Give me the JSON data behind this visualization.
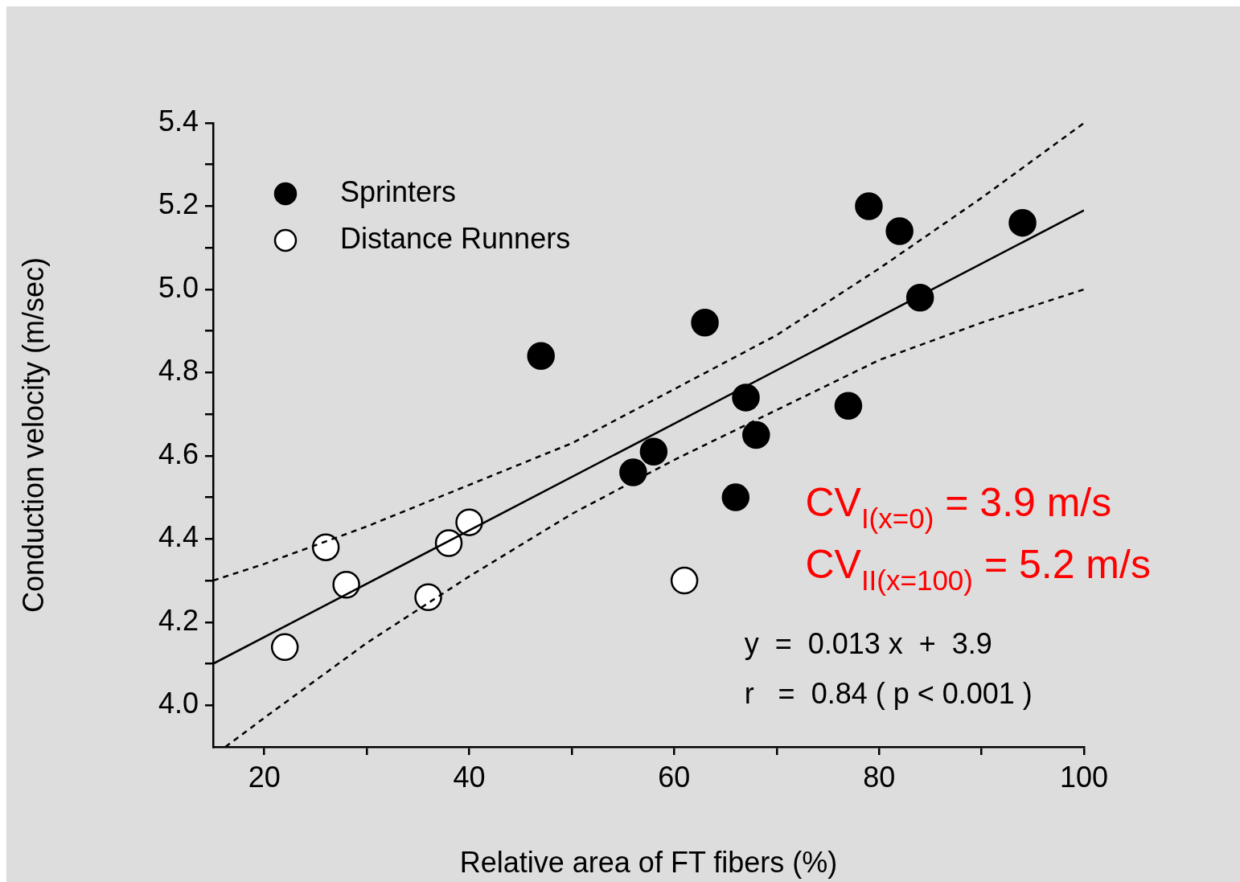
{
  "chart_data": {
    "type": "scatter",
    "xlabel": "Relative area of FT fibers (%)",
    "ylabel": "Conduction velocity (m/sec)",
    "xlim": [
      15,
      100
    ],
    "ylim": [
      3.9,
      5.4
    ],
    "xticks": [
      20,
      {
        "value": 30,
        "label": null
      },
      40,
      {
        "value": 50,
        "label": null
      },
      60,
      {
        "value": 70,
        "label": null
      },
      80,
      {
        "value": 90,
        "label": null
      },
      100
    ],
    "yticks": [
      {
        "value": 4.0,
        "label": "4.0"
      },
      {
        "value": 4.1,
        "label": null
      },
      4.2,
      {
        "value": 4.3,
        "label": null
      },
      4.4,
      {
        "value": 4.5,
        "label": null
      },
      4.6,
      {
        "value": 4.7,
        "label": null
      },
      4.8,
      {
        "value": 4.9,
        "label": null
      },
      {
        "value": 5.0,
        "label": "5.0"
      },
      {
        "value": 5.1,
        "label": null
      },
      5.2,
      {
        "value": 5.3,
        "label": null
      },
      5.4
    ],
    "grid": false,
    "legend": "top left",
    "marker": "circle",
    "series": [
      {
        "type": "line",
        "color": "#000000",
        "line_style": "solid",
        "marker": "none",
        "x": [
          15,
          100
        ],
        "values": [
          4.1,
          5.19
        ]
      },
      {
        "type": "line",
        "color": "#000000",
        "line_style": "dashed",
        "marker": "none",
        "x": [
          15,
          20,
          30,
          40,
          50,
          60,
          70,
          80,
          90,
          100
        ],
        "values": [
          4.3,
          4.34,
          4.43,
          4.53,
          4.63,
          4.76,
          4.89,
          5.05,
          5.22,
          5.4
        ]
      },
      {
        "type": "line",
        "color": "#000000",
        "line_style": "dashed",
        "marker": "none",
        "x": [
          16.2,
          20,
          30,
          40,
          50,
          60,
          70,
          80,
          90,
          100
        ],
        "values": [
          3.9,
          3.97,
          4.15,
          4.31,
          4.46,
          4.59,
          4.71,
          4.83,
          4.92,
          5.0
        ]
      },
      {
        "type": "scatter",
        "name": "Sprinters",
        "color": "#000000",
        "x": [
          47,
          56,
          58,
          63,
          66,
          67,
          68,
          77,
          79,
          82,
          84,
          94
        ],
        "values": [
          4.84,
          4.56,
          4.61,
          4.92,
          4.5,
          4.74,
          4.65,
          4.72,
          5.2,
          5.14,
          4.98,
          5.16
        ]
      },
      {
        "type": "scatter",
        "name": "Distance Runners",
        "color": "#ffffff",
        "x": [
          22,
          26,
          28,
          36,
          38,
          40,
          61
        ],
        "values": [
          4.14,
          4.38,
          4.29,
          4.26,
          4.39,
          4.44,
          4.3
        ]
      }
    ],
    "annotations": [
      "CV$_{I(x=0)}$ = 3.9 m/s",
      "CV$_{II(x=100)}$ = 5.2 m/s",
      "y  =  0.013 x  +  3.9",
      "r   =  0.84 ( p < 0.001 )"
    ]
  }
}
